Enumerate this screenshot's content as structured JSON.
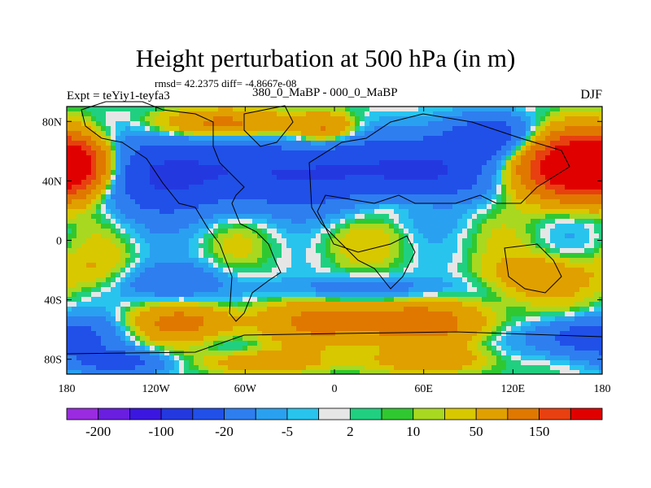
{
  "title": "Height perturbation at 500 hPa (in m)",
  "stats": "rmsd= 42.2375 diff= -4.8667e-08",
  "experiment": "Expt = teYiy1-teyfa3",
  "comparison": "380_0_MaBP - 000_0_MaBP",
  "season": "DJF",
  "chart_data": {
    "type": "heatmap",
    "title": "Height perturbation at 500 hPa (in m)",
    "x_tick_labels": [
      "180",
      "120W",
      "60W",
      "0",
      "60E",
      "120E",
      "180"
    ],
    "y_tick_labels": [
      "80N",
      "40N",
      "0",
      "40S",
      "80S"
    ],
    "x_range": [
      -180,
      180
    ],
    "y_range": [
      -90,
      90
    ],
    "colorbar_labels": [
      "-200",
      "-100",
      "-20",
      "-5",
      "2",
      "10",
      "50",
      "150"
    ],
    "levels": [
      -250,
      -200,
      -150,
      -100,
      -50,
      -20,
      -10,
      -5,
      -2,
      2,
      5,
      10,
      20,
      50,
      100,
      150,
      200
    ],
    "colors": [
      "#9a2be0",
      "#6a1ee0",
      "#3b16e0",
      "#2438e0",
      "#2050e8",
      "#2e7ef0",
      "#2aa0f0",
      "#28c4ee",
      "#e6e6e6",
      "#20d080",
      "#30c830",
      "#a8d820",
      "#d8c800",
      "#e0a000",
      "#e07800",
      "#e84010",
      "#e00000"
    ],
    "features": [
      {
        "lon": 165,
        "lat": 50,
        "amp": 230,
        "sx": 28,
        "sy": 14
      },
      {
        "lon": -180,
        "lat": 50,
        "amp": 110,
        "sx": 18,
        "sy": 13
      },
      {
        "lon": -115,
        "lat": 45,
        "amp": -120,
        "sx": 32,
        "sy": 18
      },
      {
        "lon": -20,
        "lat": 45,
        "amp": -110,
        "sx": 38,
        "sy": 16
      },
      {
        "lon": 65,
        "lat": 48,
        "amp": -110,
        "sx": 28,
        "sy": 16
      },
      {
        "lon": -75,
        "lat": 78,
        "amp": 75,
        "sx": 30,
        "sy": 7
      },
      {
        "lon": -5,
        "lat": 75,
        "amp": 60,
        "sx": 15,
        "sy": 7
      },
      {
        "lon": 105,
        "lat": 70,
        "amp": -70,
        "sx": 22,
        "sy": 10
      },
      {
        "lon": 50,
        "lat": 25,
        "amp": 25,
        "sx": 25,
        "sy": 6
      },
      {
        "lon": 0,
        "lat": 0,
        "amp": 8,
        "sx": 45,
        "sy": 12
      },
      {
        "lon": -160,
        "lat": -20,
        "amp": 15,
        "sx": 25,
        "sy": 10
      },
      {
        "lon": -110,
        "lat": -28,
        "amp": -45,
        "sx": 25,
        "sy": 9
      },
      {
        "lon": 20,
        "lat": -33,
        "amp": -35,
        "sx": 45,
        "sy": 6
      },
      {
        "lon": 140,
        "lat": -25,
        "amp": 45,
        "sx": 22,
        "sy": 10
      },
      {
        "lon": -100,
        "lat": -55,
        "amp": 55,
        "sx": 25,
        "sy": 8
      },
      {
        "lon": 30,
        "lat": -55,
        "amp": 80,
        "sx": 50,
        "sy": 10
      },
      {
        "lon": 170,
        "lat": -65,
        "amp": -90,
        "sx": 25,
        "sy": 9
      },
      {
        "lon": -145,
        "lat": -82,
        "amp": -70,
        "sx": 22,
        "sy": 6
      },
      {
        "lon": -50,
        "lat": -82,
        "amp": 45,
        "sx": 25,
        "sy": 5
      },
      {
        "lon": 60,
        "lat": -80,
        "amp": 40,
        "sx": 30,
        "sy": 6
      }
    ]
  }
}
